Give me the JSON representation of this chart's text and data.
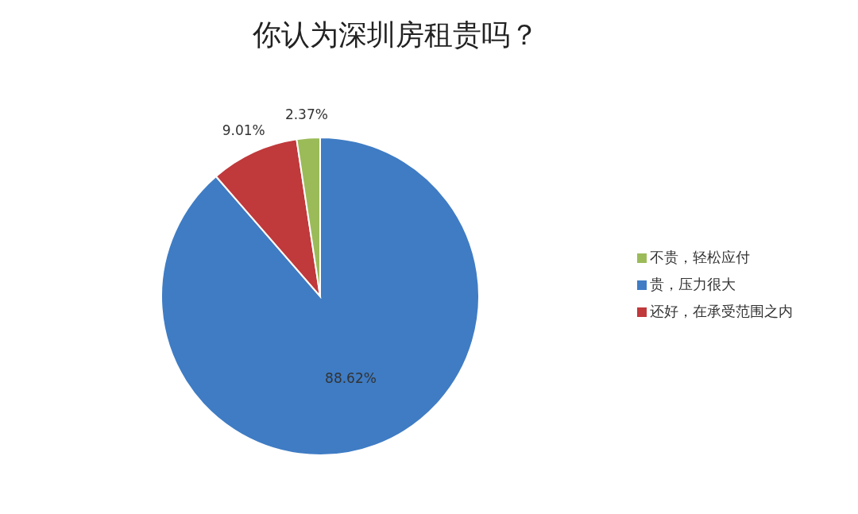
{
  "chart_data": {
    "type": "pie",
    "title": "你认为深圳房租贵吗？",
    "categories": [
      "贵，压力很大",
      "还好，在承受范围之内",
      "不贵，轻松应付"
    ],
    "values": [
      88.62,
      9.01,
      2.37
    ],
    "value_labels": [
      "88.62%",
      "9.01%",
      "2.37%"
    ],
    "colors": [
      "#3f7cc4",
      "#c0393b",
      "#9bbb59"
    ],
    "legend": "right"
  }
}
